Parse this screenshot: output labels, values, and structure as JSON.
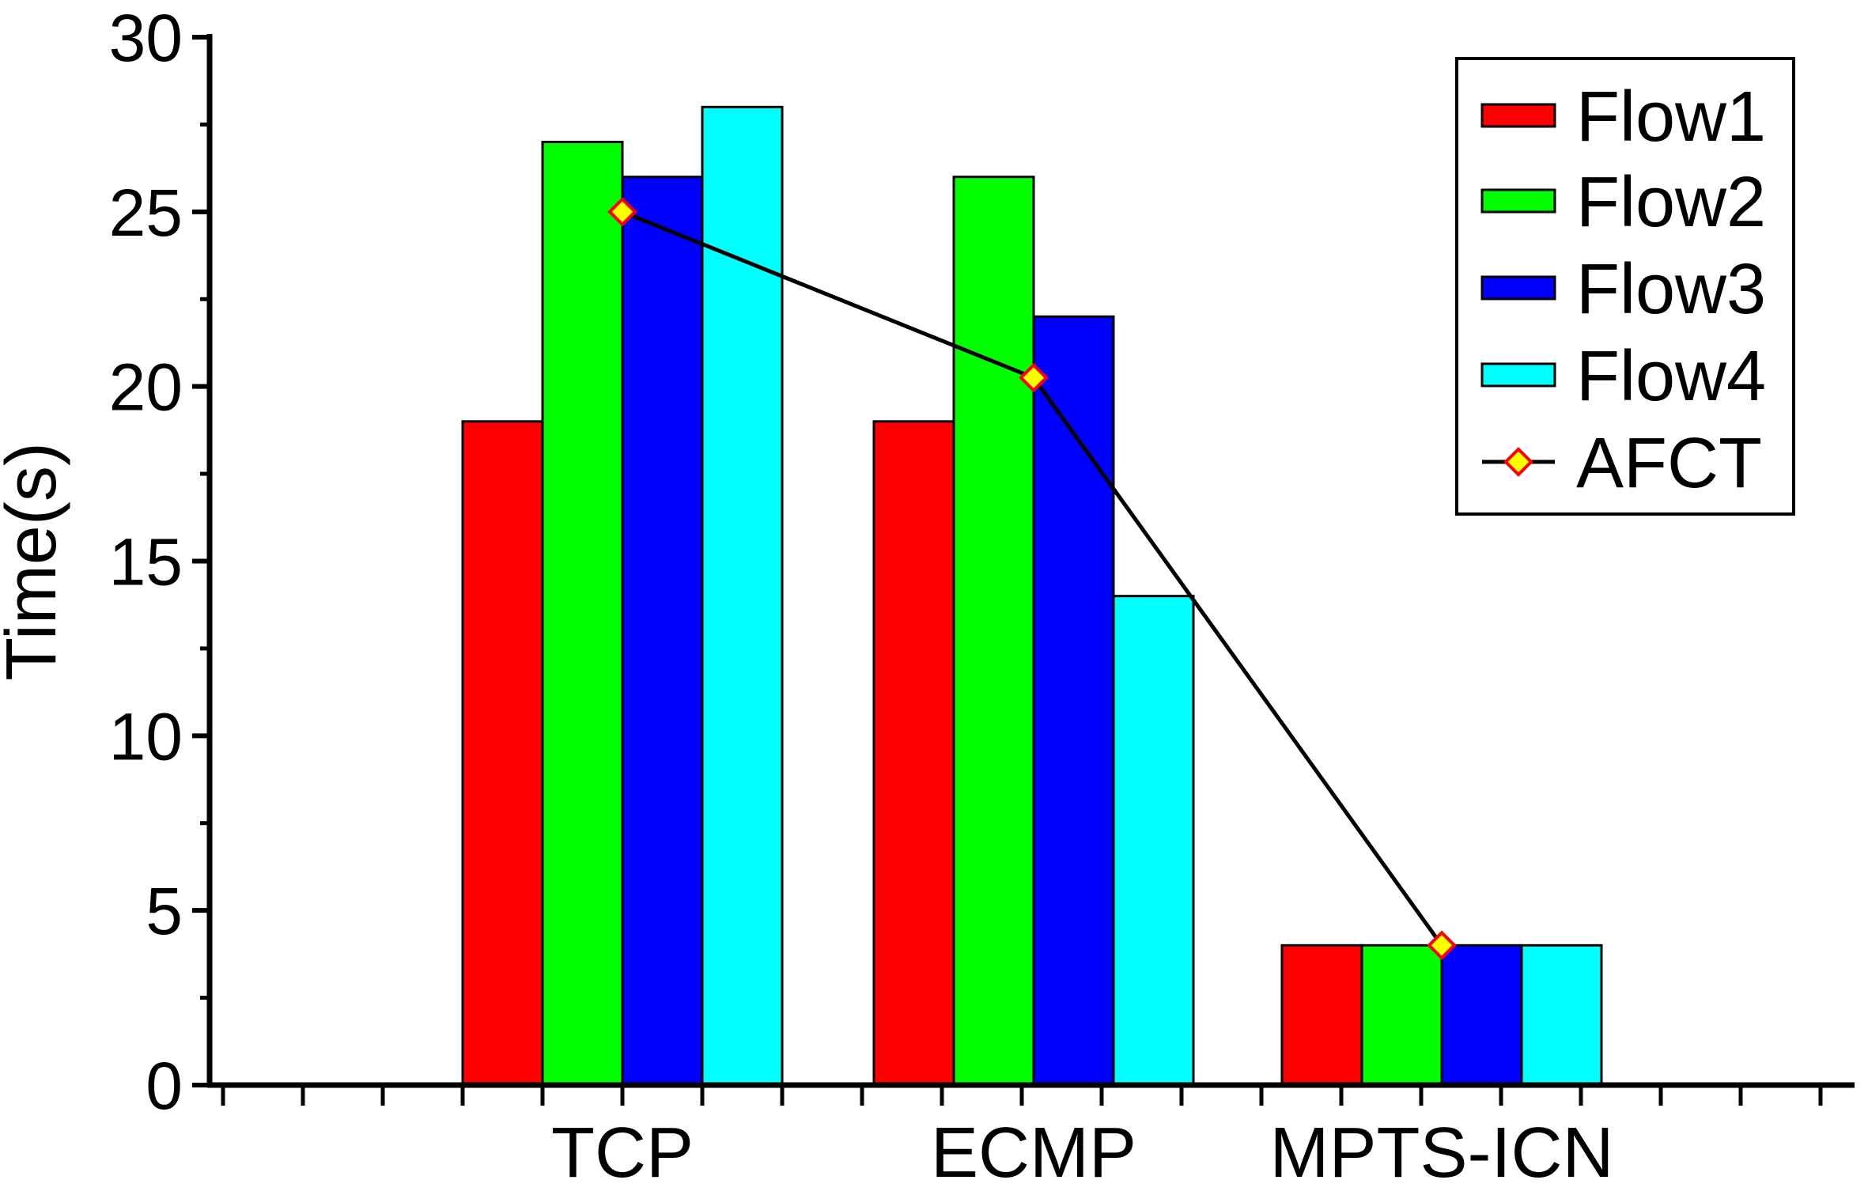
{
  "chart_data": {
    "type": "bar",
    "title": "",
    "xlabel": "",
    "ylabel": "Time(s)",
    "ylim": [
      0,
      30
    ],
    "yticks": [
      0,
      5,
      10,
      15,
      20,
      25,
      30
    ],
    "ytick_labels": [
      "0",
      "5",
      "10",
      "15",
      "20",
      "25",
      "30"
    ],
    "categories": [
      "TCP",
      "ECMP",
      "MPTS-ICN"
    ],
    "series": [
      {
        "name": "Flow1",
        "color": "#ff0000",
        "values": [
          19,
          19,
          4
        ]
      },
      {
        "name": "Flow2",
        "color": "#00ff00",
        "values": [
          27,
          26,
          4
        ]
      },
      {
        "name": "Flow3",
        "color": "#0000ff",
        "values": [
          26,
          22,
          4
        ]
      },
      {
        "name": "Flow4",
        "color": "#00ffff",
        "values": [
          28,
          14,
          4
        ]
      }
    ],
    "line_series": {
      "name": "AFCT",
      "type": "line",
      "marker": "diamond",
      "marker_fill": "#ffff00",
      "marker_edge": "#ff0000",
      "line_color": "#000000",
      "values": [
        25,
        20.25,
        4
      ]
    },
    "legend": {
      "position": "top-right",
      "entries": [
        "Flow1",
        "Flow2",
        "Flow3",
        "Flow4",
        "AFCT"
      ]
    },
    "grid": false
  }
}
